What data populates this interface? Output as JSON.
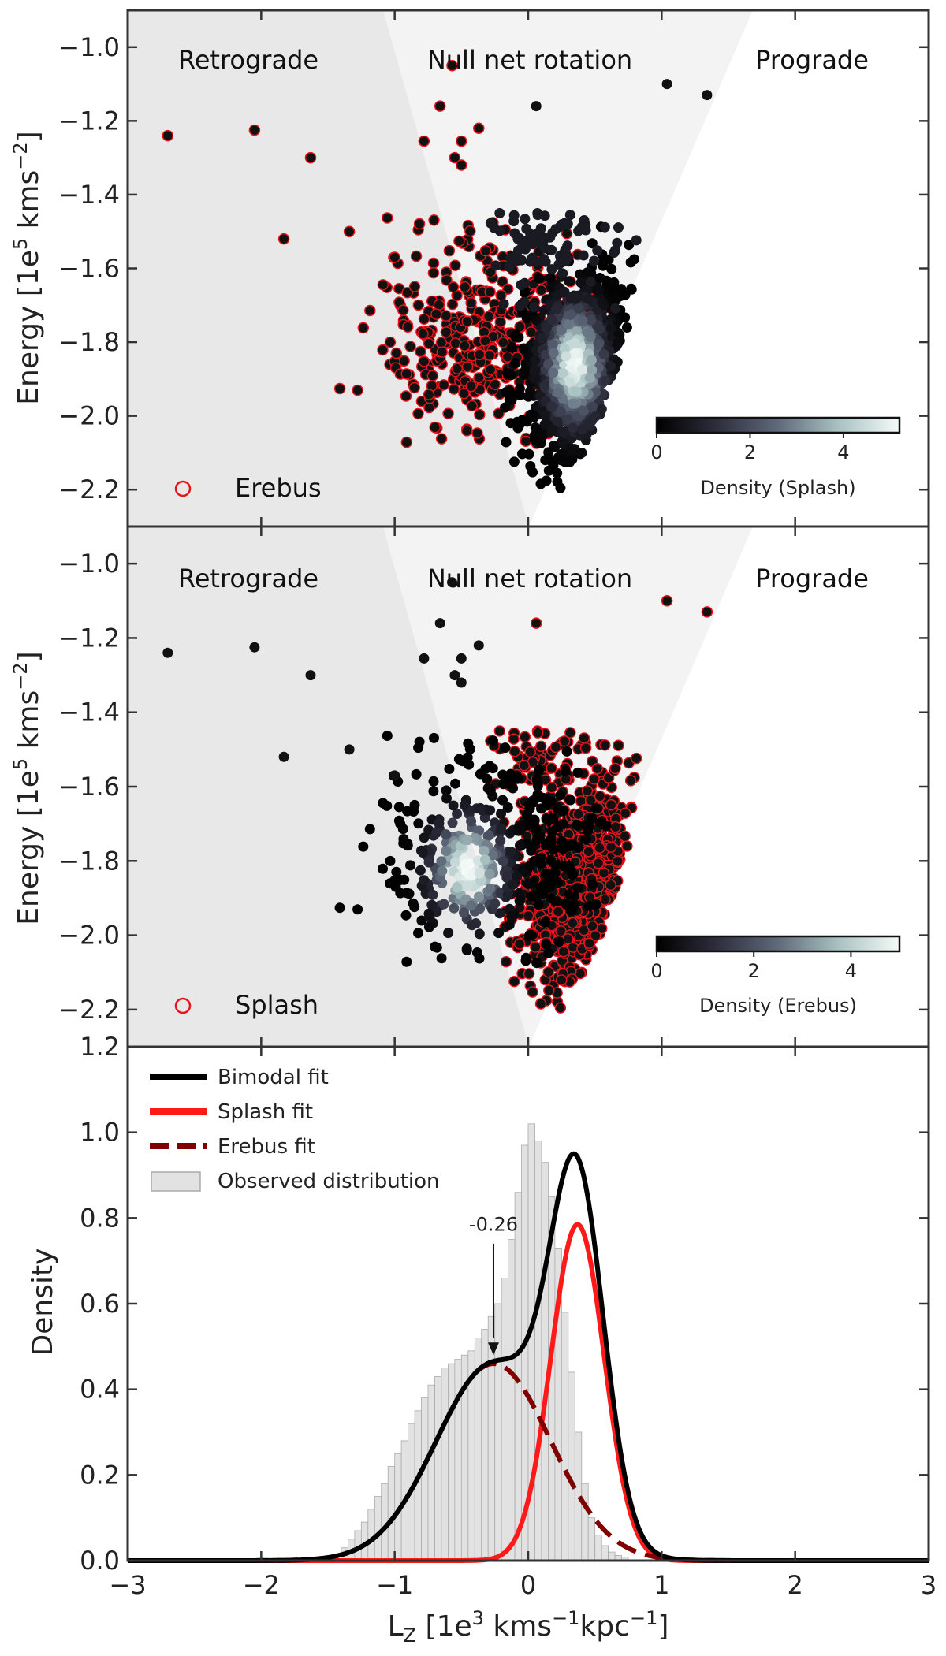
{
  "chart_data": [
    {
      "type": "scatter",
      "panel": "top",
      "title": "",
      "xlabel": "",
      "ylabel": "Energy [1e5 kms-2]",
      "ylabel_parts": {
        "main": "Energy  [1e",
        "sup1": "5",
        "mid": " kms",
        "sup2": "−2",
        "end": "]"
      },
      "ylim": [
        -2.3,
        -0.9
      ],
      "xlim": [
        -3,
        3
      ],
      "yticks": [
        -1.0,
        -1.2,
        -1.4,
        -1.6,
        -1.8,
        -2.0,
        -2.2
      ],
      "ytick_labels": [
        "−1.0",
        "−1.2",
        "−1.4",
        "−1.6",
        "−1.8",
        "−2.0",
        "−2.2"
      ],
      "regions": [
        "Retrograde",
        "Null net rotation",
        "Prograde"
      ],
      "legend": "Erebus",
      "colorbar": {
        "label": "Density (Splash)",
        "ticks": [
          "0",
          "2",
          "4"
        ],
        "range": [
          0,
          5.2
        ]
      },
      "highlight_color": "#e8141c",
      "sparse_points": [
        {
          "lz": -2.7,
          "e": -1.24
        },
        {
          "lz": -2.05,
          "e": -1.225
        },
        {
          "lz": -1.63,
          "e": -1.3
        },
        {
          "lz": -1.83,
          "e": -1.52
        },
        {
          "lz": -0.57,
          "e": -1.05
        },
        {
          "lz": -0.66,
          "e": -1.16
        },
        {
          "lz": -0.78,
          "e": -1.255
        },
        {
          "lz": -0.5,
          "e": -1.255
        },
        {
          "lz": -0.37,
          "e": -1.22
        },
        {
          "lz": -0.55,
          "e": -1.3
        },
        {
          "lz": -0.5,
          "e": -1.32
        },
        {
          "lz": -1.0,
          "e": -1.57
        },
        {
          "lz": -1.34,
          "e": -1.5
        },
        {
          "lz": 1.04,
          "e": -1.1
        },
        {
          "lz": 1.34,
          "e": -1.13
        },
        {
          "lz": 0.06,
          "e": -1.16
        }
      ]
    },
    {
      "type": "scatter",
      "panel": "middle",
      "title": "",
      "xlabel": "",
      "ylabel": "Energy [1e5 kms-2]",
      "ylabel_parts": {
        "main": "Energy  [1e",
        "sup1": "5",
        "mid": " kms",
        "sup2": "−2",
        "end": "]"
      },
      "ylim": [
        -2.3,
        -0.9
      ],
      "xlim": [
        -3,
        3
      ],
      "yticks": [
        -1.0,
        -1.2,
        -1.4,
        -1.6,
        -1.8,
        -2.0,
        -2.2
      ],
      "ytick_labels": [
        "−1.0",
        "−1.2",
        "−1.4",
        "−1.6",
        "−1.8",
        "−2.0",
        "−2.2"
      ],
      "regions": [
        "Retrograde",
        "Null net rotation",
        "Prograde"
      ],
      "legend": "Splash",
      "colorbar": {
        "label": "Density (Erebus)",
        "ticks": [
          "0",
          "2",
          "4"
        ],
        "range": [
          0,
          5.0
        ]
      },
      "highlight_color": "#e8141c"
    },
    {
      "type": "line",
      "panel": "bottom",
      "title": "",
      "xlabel": "LZ [1e3 kms-1kpc-1]",
      "xlabel_parts": {
        "main": "L",
        "sub": "Z",
        "mid": "  [1e",
        "sup1": "3",
        "mid2": " kms",
        "sup2": "−1",
        "mid3": "kpc",
        "sup3": "−1",
        "end": "]"
      },
      "ylabel": "Density",
      "xlim": [
        -3,
        3
      ],
      "ylim": [
        0,
        1.2
      ],
      "xticks": [
        -3,
        -2,
        -1,
        0,
        1,
        2,
        3
      ],
      "xtick_labels": [
        "−3",
        "−2",
        "−1",
        "0",
        "1",
        "2",
        "3"
      ],
      "yticks": [
        0.0,
        0.2,
        0.4,
        0.6,
        0.8,
        1.0,
        1.2
      ],
      "ytick_labels": [
        "0.0",
        "0.2",
        "0.4",
        "0.6",
        "0.8",
        "1.0",
        "1.2"
      ],
      "legend": [
        "Bimodal fit",
        "Splash fit",
        "Erebus fit",
        "Observed distribution"
      ],
      "annotation": {
        "text": "-0.26",
        "x": -0.26,
        "y": 0.47
      },
      "series": [
        {
          "name": "Splash fit",
          "color": "#ff1a1a",
          "style": "solid",
          "model": {
            "mu": 0.37,
            "sigma": 0.2,
            "amp": 0.785
          }
        },
        {
          "name": "Erebus fit",
          "color": "#800000",
          "style": "dashed",
          "model": {
            "mu": -0.26,
            "sigma": 0.43,
            "amp": 0.46
          }
        },
        {
          "name": "Bimodal fit",
          "color": "#000000",
          "style": "solid",
          "model": "sum"
        }
      ],
      "histogram": {
        "name": "Observed distribution",
        "bin_start": -1.4,
        "bin_width": 0.05,
        "values": [
          0.03,
          0.05,
          0.07,
          0.09,
          0.12,
          0.15,
          0.18,
          0.22,
          0.25,
          0.28,
          0.32,
          0.35,
          0.38,
          0.41,
          0.43,
          0.45,
          0.46,
          0.47,
          0.48,
          0.49,
          0.52,
          0.54,
          0.57,
          0.6,
          0.66,
          0.75,
          0.86,
          0.97,
          1.02,
          0.98,
          0.93,
          0.85,
          0.73,
          0.58,
          0.44,
          0.3,
          0.18,
          0.1,
          0.06,
          0.035,
          0.02,
          0.012,
          0.008
        ]
      }
    }
  ]
}
